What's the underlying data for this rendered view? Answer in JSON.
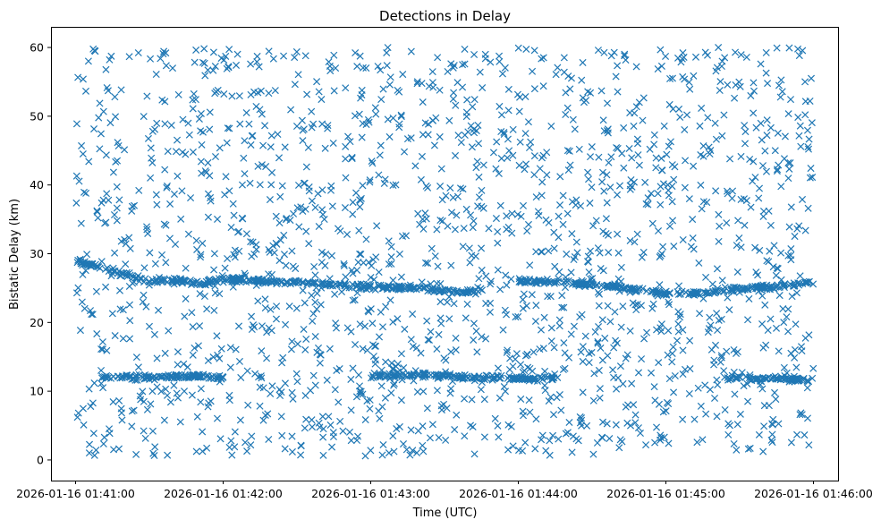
{
  "chart_data": {
    "type": "scatter",
    "title": "Detections in Delay",
    "xlabel": "Time (UTC)",
    "ylabel": "Bistatic Delay (km)",
    "x_axis": {
      "type": "time",
      "range": [
        "2026-01-16 01:40:50",
        "2026-01-16 01:46:10"
      ],
      "ticks": [
        "2026-01-16 01:41:00",
        "2026-01-16 01:42:00",
        "2026-01-16 01:43:00",
        "2026-01-16 01:44:00",
        "2026-01-16 01:45:00",
        "2026-01-16 01:46:00"
      ]
    },
    "y_axis": {
      "range": [
        -3,
        63
      ],
      "ticks": [
        0,
        10,
        20,
        30,
        40,
        50,
        60
      ]
    },
    "grid": false,
    "marker": "x",
    "color": "#1f77b4",
    "data_extent": {
      "x": [
        "2026-01-16 01:41:00",
        "2026-01-16 01:46:00"
      ],
      "y": [
        0.5,
        60
      ]
    },
    "tracks": [
      {
        "points": [
          [
            "01:41:00",
            29.0
          ],
          [
            "01:41:30",
            26.0
          ],
          [
            "01:41:45",
            26.0
          ],
          [
            "01:41:50",
            25.6
          ],
          [
            "01:42:00",
            26.3
          ],
          [
            "01:42:30",
            25.8
          ],
          [
            "01:43:00",
            25.2
          ],
          [
            "01:43:20",
            25.0
          ],
          [
            "01:43:35",
            24.4
          ],
          [
            "01:43:45",
            24.8
          ]
        ]
      },
      {
        "points": [
          [
            "01:44:00",
            26.0
          ],
          [
            "01:44:20",
            25.8
          ],
          [
            "01:44:40",
            25.2
          ],
          [
            "01:44:50",
            24.6
          ],
          [
            "01:45:00",
            24.2
          ],
          [
            "01:45:15",
            24.3
          ],
          [
            "01:45:30",
            24.9
          ],
          [
            "01:45:45",
            25.2
          ],
          [
            "01:46:00",
            25.8
          ]
        ]
      },
      {
        "points": [
          [
            "01:41:10",
            12.0
          ],
          [
            "01:41:25",
            12.0
          ],
          [
            "01:41:45",
            12.2
          ],
          [
            "01:42:00",
            12.0
          ]
        ]
      },
      {
        "points": [
          [
            "01:43:00",
            12.2
          ],
          [
            "01:43:20",
            12.4
          ],
          [
            "01:43:40",
            12.0
          ],
          [
            "01:44:00",
            11.8
          ],
          [
            "01:44:15",
            12.0
          ]
        ]
      },
      {
        "points": [
          [
            "01:45:25",
            12.0
          ],
          [
            "01:45:45",
            11.8
          ],
          [
            "01:46:00",
            11.6
          ]
        ]
      }
    ],
    "scattered_points": {
      "count": 1800,
      "x_range": [
        "2026-01-16 01:41:00",
        "2026-01-16 01:46:00"
      ],
      "y_range": [
        0.5,
        60
      ]
    }
  }
}
